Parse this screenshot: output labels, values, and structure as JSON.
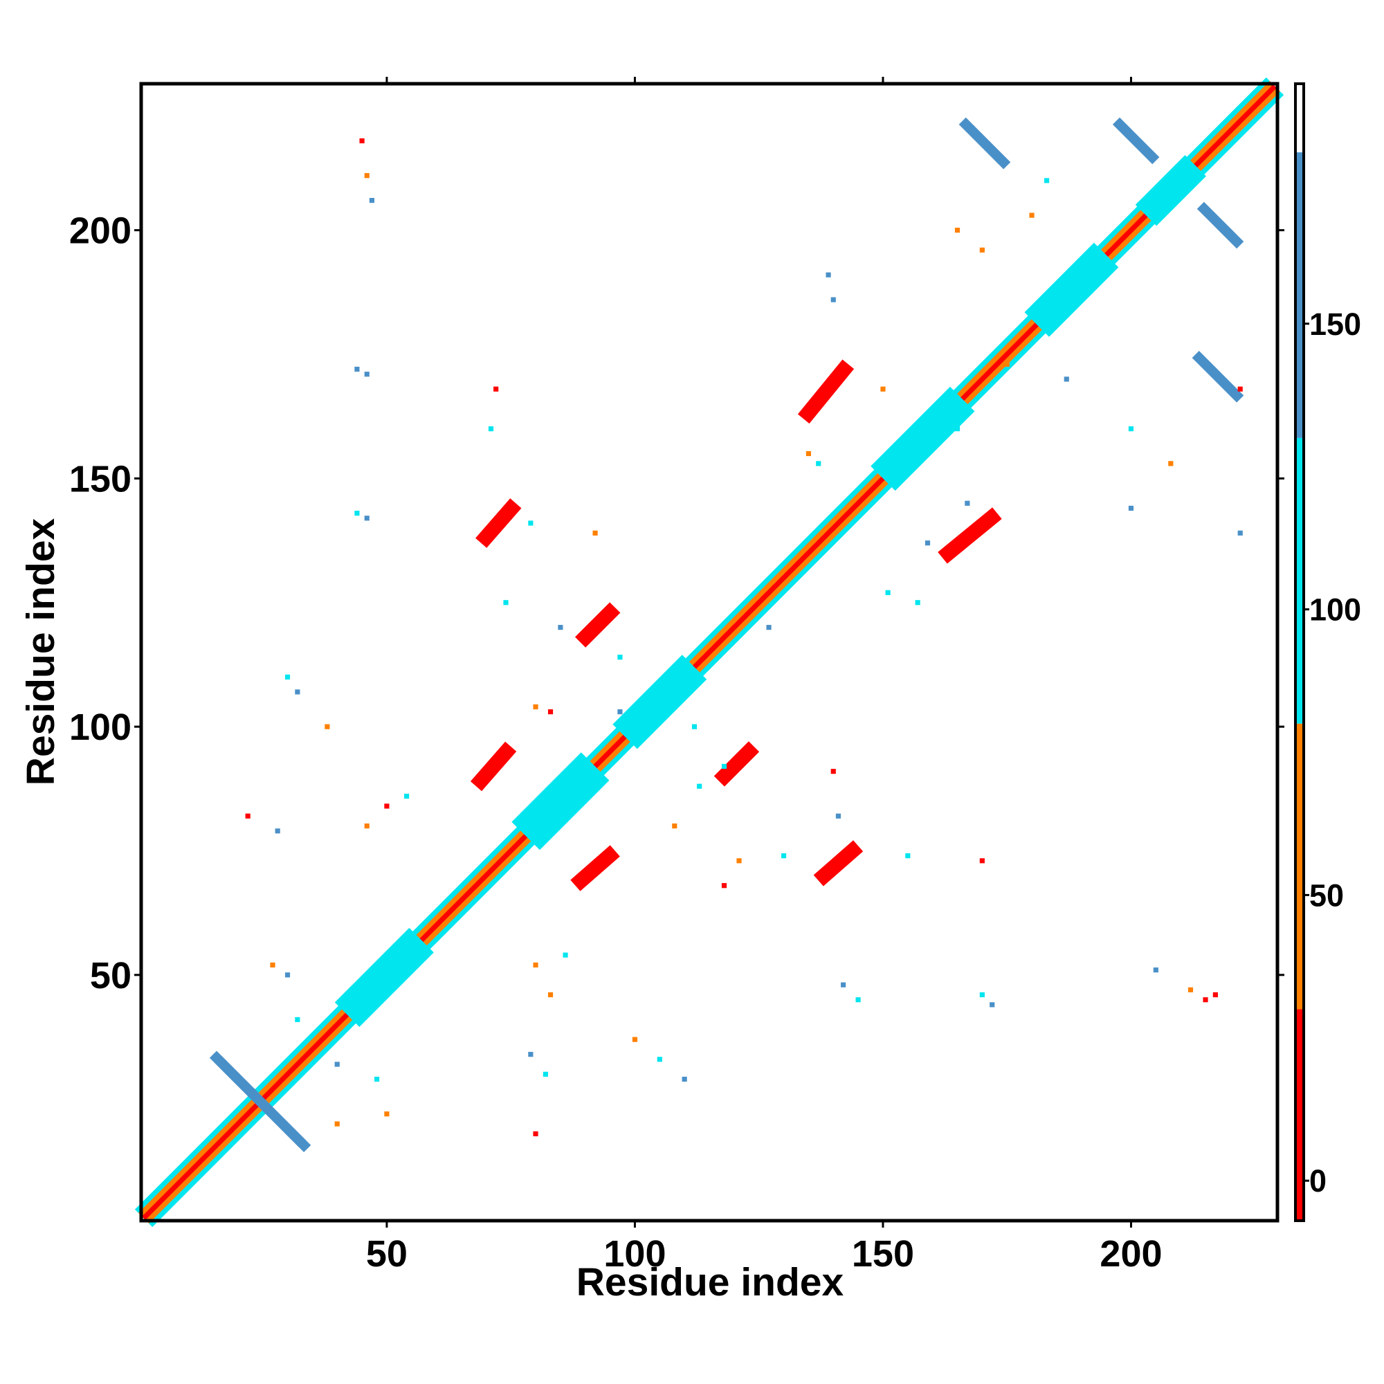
{
  "chart_data": {
    "type": "contact-map",
    "x_label": "Residue index",
    "y_label": "Residue index",
    "xlim": [
      1,
      229
    ],
    "ylim": [
      1,
      229
    ],
    "xticks": [
      50,
      100,
      150,
      200
    ],
    "yticks": [
      50,
      100,
      150,
      200
    ],
    "clim": [
      -7,
      192
    ],
    "cticks": [
      0,
      50,
      100,
      150
    ],
    "colorscale": [
      {
        "from": -7,
        "to": 30,
        "color": "#ff0000"
      },
      {
        "from": 30,
        "to": 80,
        "color": "#ff8000"
      },
      {
        "from": 80,
        "to": 130,
        "color": "#00e5ee"
      },
      {
        "from": 130,
        "to": 180,
        "color": "#4a90c8"
      },
      {
        "from": 180,
        "to": 192,
        "color": "#ffffff"
      }
    ],
    "features": [
      {
        "x": [
          1,
          229
        ],
        "y": [
          1,
          229
        ],
        "width": 5,
        "value": 100
      },
      {
        "x": [
          1,
          229
        ],
        "y": [
          1,
          229
        ],
        "width": 3,
        "value": 60
      },
      {
        "x": [
          1,
          229
        ],
        "y": [
          1,
          229
        ],
        "width": 1,
        "value": 10
      },
      {
        "x": [
          42,
          57
        ],
        "y": [
          42,
          57
        ],
        "width": 7,
        "value": 100
      },
      {
        "x": [
          78,
          92
        ],
        "y": [
          78,
          92
        ],
        "width": 8,
        "value": 100
      },
      {
        "x": [
          98,
          112
        ],
        "y": [
          98,
          112
        ],
        "width": 7,
        "value": 100
      },
      {
        "x": [
          150,
          166
        ],
        "y": [
          150,
          166
        ],
        "width": 7,
        "value": 100
      },
      {
        "x": [
          181,
          195
        ],
        "y": [
          181,
          195
        ],
        "width": 7,
        "value": 100
      },
      {
        "x": [
          203,
          213
        ],
        "y": [
          203,
          213
        ],
        "width": 6,
        "value": 100
      },
      {
        "x": [
          15,
          33
        ],
        "y": [
          34,
          16
        ],
        "width": 2,
        "value": 150
      },
      {
        "x": [
          34,
          16
        ],
        "y": [
          15,
          33
        ],
        "width": 2,
        "value": 150
      },
      {
        "x": [
          166,
          175
        ],
        "y": [
          222,
          213
        ],
        "width": 2,
        "value": 150
      },
      {
        "x": [
          222,
          213
        ],
        "y": [
          166,
          175
        ],
        "width": 2,
        "value": 150
      },
      {
        "x": [
          197,
          205
        ],
        "y": [
          222,
          214
        ],
        "width": 2,
        "value": 150
      },
      {
        "x": [
          222,
          214
        ],
        "y": [
          197,
          205
        ],
        "width": 2,
        "value": 150
      },
      {
        "x": [
          69,
          76
        ],
        "y": [
          137,
          145
        ],
        "width": 3,
        "value": 10
      },
      {
        "x": [
          137,
          145
        ],
        "y": [
          69,
          76
        ],
        "width": 3,
        "value": 10
      },
      {
        "x": [
          89,
          96
        ],
        "y": [
          117,
          124
        ],
        "width": 3,
        "value": 10
      },
      {
        "x": [
          117,
          124
        ],
        "y": [
          89,
          96
        ],
        "width": 3,
        "value": 10
      },
      {
        "x": [
          68,
          75
        ],
        "y": [
          88,
          96
        ],
        "width": 3,
        "value": 10
      },
      {
        "x": [
          88,
          96
        ],
        "y": [
          68,
          75
        ],
        "width": 3,
        "value": 10
      },
      {
        "x": [
          134,
          143
        ],
        "y": [
          162,
          173
        ],
        "width": 3,
        "value": 10
      },
      {
        "x": [
          162,
          173
        ],
        "y": [
          134,
          143
        ],
        "width": 3,
        "value": 10
      }
    ],
    "contacts": {
      "x": [
        45,
        46,
        47,
        44,
        46,
        44,
        46,
        72,
        71,
        79,
        92,
        74,
        85,
        97,
        30,
        32,
        38,
        22,
        28,
        46,
        50,
        54,
        80,
        83,
        97,
        27,
        30,
        32,
        40,
        48,
        79,
        82,
        40,
        50,
        80,
        100,
        105,
        110,
        80,
        83,
        86,
        139,
        150,
        165,
        165,
        170,
        187,
        142,
        145,
        170,
        172,
        205,
        212,
        217,
        215,
        118,
        121,
        130,
        140,
        141,
        155,
        170,
        108,
        113,
        112,
        118,
        151,
        157,
        159,
        167,
        200,
        222,
        222,
        200,
        208,
        175,
        135,
        137,
        127,
        180,
        183,
        140
      ],
      "y": [
        218,
        211,
        206,
        172,
        171,
        143,
        142,
        168,
        160,
        141,
        139,
        125,
        120,
        114,
        110,
        107,
        100,
        82,
        79,
        80,
        84,
        86,
        104,
        103,
        103,
        52,
        50,
        41,
        32,
        29,
        34,
        30,
        20,
        22,
        18,
        37,
        33,
        29,
        52,
        46,
        54,
        191,
        168,
        160,
        200,
        196,
        170,
        48,
        45,
        46,
        44,
        51,
        47,
        46,
        45,
        68,
        73,
        74,
        91,
        82,
        74,
        73,
        80,
        88,
        100,
        92,
        127,
        125,
        137,
        145,
        144,
        139,
        168,
        160,
        153,
        173,
        155,
        153,
        120,
        203,
        210,
        186
      ],
      "values": [
        10,
        60,
        150,
        150,
        150,
        100,
        150,
        10,
        100,
        100,
        60,
        100,
        150,
        100,
        100,
        150,
        60,
        10,
        150,
        60,
        10,
        100,
        60,
        10,
        150,
        60,
        150,
        100,
        150,
        100,
        150,
        100,
        60,
        60,
        10,
        60,
        100,
        150,
        60,
        60,
        100,
        150,
        60,
        100,
        60,
        60,
        150,
        150,
        100,
        100,
        150,
        150,
        60,
        10,
        10,
        10,
        60,
        100,
        10,
        150,
        100,
        10,
        60,
        100,
        100,
        100,
        100,
        100,
        150,
        150,
        150,
        150,
        10,
        100,
        60,
        60,
        60,
        100,
        150,
        60,
        100,
        150
      ]
    }
  }
}
